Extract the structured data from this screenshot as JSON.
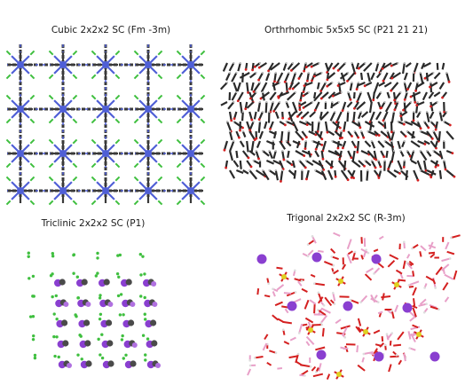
{
  "panels": [
    {
      "caption": "Cubic 2x2x2 SC (Fm -3m)"
    },
    {
      "caption": "Orthrhombic 5x5x5 SC (P21 21 21)"
    },
    {
      "caption": "Triclinic 2x2x2 SC (P1)"
    },
    {
      "caption": "Trigonal 2x2x2 SC (R-3m)"
    }
  ],
  "colors": {
    "carbon": "#3a3a3a",
    "nitrogen": "#4f5fd6",
    "chlorine": "#3fbf3f",
    "oxygen": "#d42020",
    "iodine_purple": "#8a3fd0",
    "sulfur": "#e0d020",
    "hydrogen": "#f2f2f2",
    "pink_bond": "#e8a0c8"
  }
}
